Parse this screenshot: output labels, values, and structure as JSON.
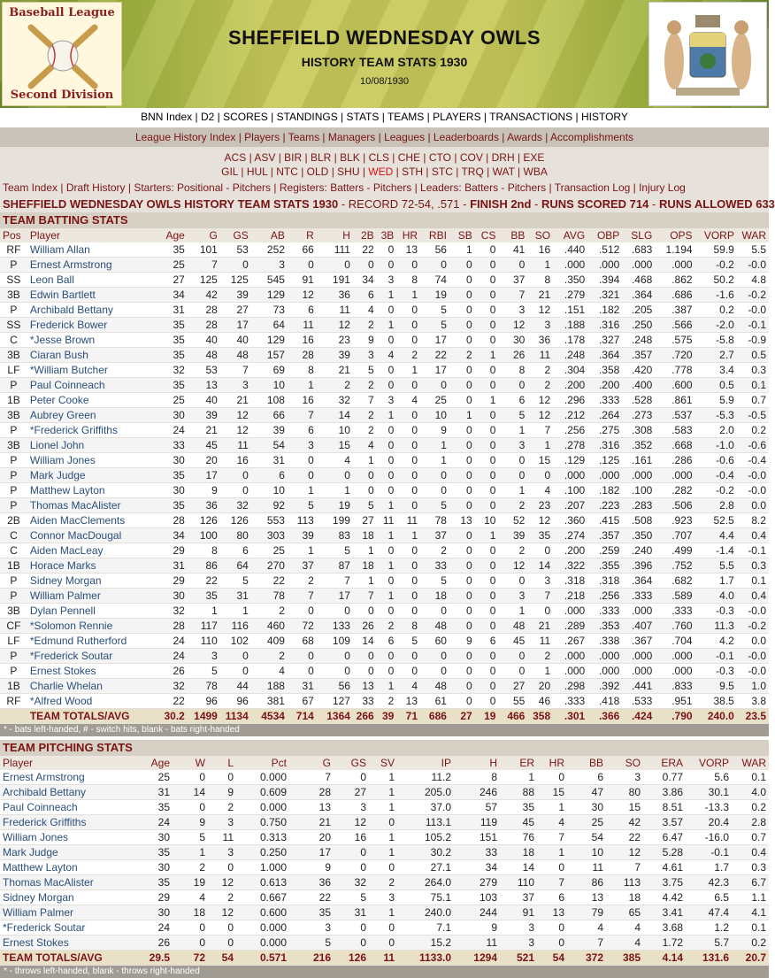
{
  "logo": {
    "line1": "Baseball League",
    "line2": "Second Division"
  },
  "title": "SHEFFIELD WEDNESDAY OWLS",
  "subtitle": "HISTORY TEAM STATS 1930",
  "date": "10/08/1930",
  "top_nav": [
    "BNN Index",
    "D2",
    "SCORES",
    "STANDINGS",
    "STATS",
    "TEAMS",
    "PLAYERS",
    "TRANSACTIONS",
    "HISTORY"
  ],
  "history_nav": [
    "League History Index",
    "Players",
    "Teams",
    "Managers",
    "Leagues",
    "Leaderboards",
    "Awards",
    "Accomplishments"
  ],
  "team_codes_row1": [
    "ACS",
    "ASV",
    "BIR",
    "BLR",
    "BLK",
    "CLS",
    "CHE",
    "CTO",
    "COV",
    "DRH",
    "EXE"
  ],
  "team_codes_row2": [
    "GIL",
    "HUL",
    "NTC",
    "OLD",
    "SHU",
    "WED",
    "STH",
    "STC",
    "TRQ",
    "WAT",
    "WBA"
  ],
  "current_team_code": "WED",
  "team_links": [
    "Team Index",
    "Draft History",
    "Starters: Positional - Pitchers",
    "Registers: Batters - Pitchers",
    "Leaders: Batters - Pitchers",
    "Transaction Log",
    "Injury Log"
  ],
  "summary": {
    "heading": "SHEFFIELD WEDNESDAY OWLS HISTORY TEAM STATS 1930",
    "record": "RECORD 72-54, .571",
    "finish": "FINISH 2nd",
    "rs": "RUNS SCORED 714",
    "ra": "RUNS ALLOWED 633"
  },
  "batting": {
    "title": "TEAM BATTING STATS",
    "columns": [
      "Pos",
      "Player",
      "Age",
      "G",
      "GS",
      "AB",
      "R",
      "H",
      "2B",
      "3B",
      "HR",
      "RBI",
      "SB",
      "CS",
      "BB",
      "SO",
      "AVG",
      "OBP",
      "SLG",
      "OPS",
      "VORP",
      "WAR"
    ],
    "rows": [
      [
        "RF",
        "William Allan",
        "35",
        "101",
        "53",
        "252",
        "66",
        "111",
        "22",
        "0",
        "13",
        "56",
        "1",
        "0",
        "41",
        "16",
        ".440",
        ".512",
        ".683",
        "1.194",
        "59.9",
        "5.5"
      ],
      [
        "P",
        "Ernest Armstrong",
        "25",
        "7",
        "0",
        "3",
        "0",
        "0",
        "0",
        "0",
        "0",
        "0",
        "0",
        "0",
        "0",
        "1",
        ".000",
        ".000",
        ".000",
        ".000",
        "-0.2",
        "-0.0"
      ],
      [
        "SS",
        "Leon Ball",
        "27",
        "125",
        "125",
        "545",
        "91",
        "191",
        "34",
        "3",
        "8",
        "74",
        "0",
        "0",
        "37",
        "8",
        ".350",
        ".394",
        ".468",
        ".862",
        "50.2",
        "4.8"
      ],
      [
        "3B",
        "Edwin Bartlett",
        "34",
        "42",
        "39",
        "129",
        "12",
        "36",
        "6",
        "1",
        "1",
        "19",
        "0",
        "0",
        "7",
        "21",
        ".279",
        ".321",
        ".364",
        ".686",
        "-1.6",
        "-0.2"
      ],
      [
        "P",
        "Archibald Bettany",
        "31",
        "28",
        "27",
        "73",
        "6",
        "11",
        "4",
        "0",
        "0",
        "5",
        "0",
        "0",
        "3",
        "12",
        ".151",
        ".182",
        ".205",
        ".387",
        "0.2",
        "-0.0"
      ],
      [
        "SS",
        "Frederick Bower",
        "35",
        "28",
        "17",
        "64",
        "11",
        "12",
        "2",
        "1",
        "0",
        "5",
        "0",
        "0",
        "12",
        "3",
        ".188",
        ".316",
        ".250",
        ".566",
        "-2.0",
        "-0.1"
      ],
      [
        "C",
        "*Jesse Brown",
        "35",
        "40",
        "40",
        "129",
        "16",
        "23",
        "9",
        "0",
        "0",
        "17",
        "0",
        "0",
        "30",
        "36",
        ".178",
        ".327",
        ".248",
        ".575",
        "-5.8",
        "-0.9"
      ],
      [
        "3B",
        "Ciaran Bush",
        "35",
        "48",
        "48",
        "157",
        "28",
        "39",
        "3",
        "4",
        "2",
        "22",
        "2",
        "1",
        "26",
        "11",
        ".248",
        ".364",
        ".357",
        ".720",
        "2.7",
        "0.5"
      ],
      [
        "LF",
        "*William Butcher",
        "32",
        "53",
        "7",
        "69",
        "8",
        "21",
        "5",
        "0",
        "1",
        "17",
        "0",
        "0",
        "8",
        "2",
        ".304",
        ".358",
        ".420",
        ".778",
        "3.4",
        "0.3"
      ],
      [
        "P",
        "Paul Coinneach",
        "35",
        "13",
        "3",
        "10",
        "1",
        "2",
        "2",
        "0",
        "0",
        "0",
        "0",
        "0",
        "0",
        "2",
        ".200",
        ".200",
        ".400",
        ".600",
        "0.5",
        "0.1"
      ],
      [
        "1B",
        "Peter Cooke",
        "25",
        "40",
        "21",
        "108",
        "16",
        "32",
        "7",
        "3",
        "4",
        "25",
        "0",
        "1",
        "6",
        "12",
        ".296",
        ".333",
        ".528",
        ".861",
        "5.9",
        "0.7"
      ],
      [
        "3B",
        "Aubrey Green",
        "30",
        "39",
        "12",
        "66",
        "7",
        "14",
        "2",
        "1",
        "0",
        "10",
        "1",
        "0",
        "5",
        "12",
        ".212",
        ".264",
        ".273",
        ".537",
        "-5.3",
        "-0.5"
      ],
      [
        "P",
        "*Frederick Griffiths",
        "24",
        "21",
        "12",
        "39",
        "6",
        "10",
        "2",
        "0",
        "0",
        "9",
        "0",
        "0",
        "1",
        "7",
        ".256",
        ".275",
        ".308",
        ".583",
        "2.0",
        "0.2"
      ],
      [
        "3B",
        "Lionel John",
        "33",
        "45",
        "11",
        "54",
        "3",
        "15",
        "4",
        "0",
        "0",
        "1",
        "0",
        "0",
        "3",
        "1",
        ".278",
        ".316",
        ".352",
        ".668",
        "-1.0",
        "-0.6"
      ],
      [
        "P",
        "William Jones",
        "30",
        "20",
        "16",
        "31",
        "0",
        "4",
        "1",
        "0",
        "0",
        "1",
        "0",
        "0",
        "0",
        "15",
        ".129",
        ".125",
        ".161",
        ".286",
        "-0.6",
        "-0.4"
      ],
      [
        "P",
        "Mark Judge",
        "35",
        "17",
        "0",
        "6",
        "0",
        "0",
        "0",
        "0",
        "0",
        "0",
        "0",
        "0",
        "0",
        "0",
        ".000",
        ".000",
        ".000",
        ".000",
        "-0.4",
        "-0.0"
      ],
      [
        "P",
        "Matthew Layton",
        "30",
        "9",
        "0",
        "10",
        "1",
        "1",
        "0",
        "0",
        "0",
        "0",
        "0",
        "0",
        "1",
        "4",
        ".100",
        ".182",
        ".100",
        ".282",
        "-0.2",
        "-0.0"
      ],
      [
        "P",
        "Thomas MacAlister",
        "35",
        "36",
        "32",
        "92",
        "5",
        "19",
        "5",
        "1",
        "0",
        "5",
        "0",
        "0",
        "2",
        "23",
        ".207",
        ".223",
        ".283",
        ".506",
        "2.8",
        "0.0"
      ],
      [
        "2B",
        "Aiden MacClements",
        "28",
        "126",
        "126",
        "553",
        "113",
        "199",
        "27",
        "11",
        "11",
        "78",
        "13",
        "10",
        "52",
        "12",
        ".360",
        ".415",
        ".508",
        ".923",
        "52.5",
        "8.2"
      ],
      [
        "C",
        "Connor MacDougal",
        "34",
        "100",
        "80",
        "303",
        "39",
        "83",
        "18",
        "1",
        "1",
        "37",
        "0",
        "1",
        "39",
        "35",
        ".274",
        ".357",
        ".350",
        ".707",
        "4.4",
        "0.4"
      ],
      [
        "C",
        "Aiden MacLeay",
        "29",
        "8",
        "6",
        "25",
        "1",
        "5",
        "1",
        "0",
        "0",
        "2",
        "0",
        "0",
        "2",
        "0",
        ".200",
        ".259",
        ".240",
        ".499",
        "-1.4",
        "-0.1"
      ],
      [
        "1B",
        "Horace Marks",
        "31",
        "86",
        "64",
        "270",
        "37",
        "87",
        "18",
        "1",
        "0",
        "33",
        "0",
        "0",
        "12",
        "14",
        ".322",
        ".355",
        ".396",
        ".752",
        "5.5",
        "0.3"
      ],
      [
        "P",
        "Sidney Morgan",
        "29",
        "22",
        "5",
        "22",
        "2",
        "7",
        "1",
        "0",
        "0",
        "5",
        "0",
        "0",
        "0",
        "3",
        ".318",
        ".318",
        ".364",
        ".682",
        "1.7",
        "0.1"
      ],
      [
        "P",
        "William Palmer",
        "30",
        "35",
        "31",
        "78",
        "7",
        "17",
        "7",
        "1",
        "0",
        "18",
        "0",
        "0",
        "3",
        "7",
        ".218",
        ".256",
        ".333",
        ".589",
        "4.0",
        "0.4"
      ],
      [
        "3B",
        "Dylan Pennell",
        "32",
        "1",
        "1",
        "2",
        "0",
        "0",
        "0",
        "0",
        "0",
        "0",
        "0",
        "0",
        "1",
        "0",
        ".000",
        ".333",
        ".000",
        ".333",
        "-0.3",
        "-0.0"
      ],
      [
        "CF",
        "*Solomon Rennie",
        "28",
        "117",
        "116",
        "460",
        "72",
        "133",
        "26",
        "2",
        "8",
        "48",
        "0",
        "0",
        "48",
        "21",
        ".289",
        ".353",
        ".407",
        ".760",
        "11.3",
        "-0.2"
      ],
      [
        "LF",
        "*Edmund Rutherford",
        "24",
        "110",
        "102",
        "409",
        "68",
        "109",
        "14",
        "6",
        "5",
        "60",
        "9",
        "6",
        "45",
        "11",
        ".267",
        ".338",
        ".367",
        ".704",
        "4.2",
        "0.0"
      ],
      [
        "P",
        "*Frederick Soutar",
        "24",
        "3",
        "0",
        "2",
        "0",
        "0",
        "0",
        "0",
        "0",
        "0",
        "0",
        "0",
        "0",
        "2",
        ".000",
        ".000",
        ".000",
        ".000",
        "-0.1",
        "-0.0"
      ],
      [
        "P",
        "Ernest Stokes",
        "26",
        "5",
        "0",
        "4",
        "0",
        "0",
        "0",
        "0",
        "0",
        "0",
        "0",
        "0",
        "0",
        "1",
        ".000",
        ".000",
        ".000",
        ".000",
        "-0.3",
        "-0.0"
      ],
      [
        "1B",
        "Charlie Whelan",
        "32",
        "78",
        "44",
        "188",
        "31",
        "56",
        "13",
        "1",
        "4",
        "48",
        "0",
        "0",
        "27",
        "20",
        ".298",
        ".392",
        ".441",
        ".833",
        "9.5",
        "1.0"
      ],
      [
        "RF",
        "*Alfred Wood",
        "22",
        "96",
        "96",
        "381",
        "67",
        "127",
        "33",
        "2",
        "13",
        "61",
        "0",
        "0",
        "55",
        "46",
        ".333",
        ".418",
        ".533",
        ".951",
        "38.5",
        "3.8"
      ]
    ],
    "totals": [
      "",
      "TEAM TOTALS/AVG",
      "30.2",
      "1499",
      "1134",
      "4534",
      "714",
      "1364",
      "266",
      "39",
      "71",
      "686",
      "27",
      "19",
      "466",
      "358",
      ".301",
      ".366",
      ".424",
      ".790",
      "240.0",
      "23.5"
    ],
    "note": "* - bats left-handed, # - switch hits, blank - bats right-handed"
  },
  "pitching": {
    "title": "TEAM PITCHING STATS",
    "columns": [
      "Player",
      "Age",
      "W",
      "L",
      "Pct",
      "G",
      "GS",
      "SV",
      "IP",
      "H",
      "ER",
      "HR",
      "BB",
      "SO",
      "ERA",
      "VORP",
      "WAR"
    ],
    "rows": [
      [
        "Ernest Armstrong",
        "25",
        "0",
        "0",
        "0.000",
        "7",
        "0",
        "1",
        "11.2",
        "8",
        "1",
        "0",
        "6",
        "3",
        "0.77",
        "5.6",
        "0.1"
      ],
      [
        "Archibald Bettany",
        "31",
        "14",
        "9",
        "0.609",
        "28",
        "27",
        "1",
        "205.0",
        "246",
        "88",
        "15",
        "47",
        "80",
        "3.86",
        "30.1",
        "4.0"
      ],
      [
        "Paul Coinneach",
        "35",
        "0",
        "2",
        "0.000",
        "13",
        "3",
        "1",
        "37.0",
        "57",
        "35",
        "1",
        "30",
        "15",
        "8.51",
        "-13.3",
        "0.2"
      ],
      [
        "Frederick Griffiths",
        "24",
        "9",
        "3",
        "0.750",
        "21",
        "12",
        "0",
        "113.1",
        "119",
        "45",
        "4",
        "25",
        "42",
        "3.57",
        "20.4",
        "2.8"
      ],
      [
        "William Jones",
        "30",
        "5",
        "11",
        "0.313",
        "20",
        "16",
        "1",
        "105.2",
        "151",
        "76",
        "7",
        "54",
        "22",
        "6.47",
        "-16.0",
        "0.7"
      ],
      [
        "Mark Judge",
        "35",
        "1",
        "3",
        "0.250",
        "17",
        "0",
        "1",
        "30.2",
        "33",
        "18",
        "1",
        "10",
        "12",
        "5.28",
        "-0.1",
        "0.4"
      ],
      [
        "Matthew Layton",
        "30",
        "2",
        "0",
        "1.000",
        "9",
        "0",
        "0",
        "27.1",
        "34",
        "14",
        "0",
        "11",
        "7",
        "4.61",
        "1.7",
        "0.3"
      ],
      [
        "Thomas MacAlister",
        "35",
        "19",
        "12",
        "0.613",
        "36",
        "32",
        "2",
        "264.0",
        "279",
        "110",
        "7",
        "86",
        "113",
        "3.75",
        "42.3",
        "6.7"
      ],
      [
        "Sidney Morgan",
        "29",
        "4",
        "2",
        "0.667",
        "22",
        "5",
        "3",
        "75.1",
        "103",
        "37",
        "6",
        "13",
        "18",
        "4.42",
        "6.5",
        "1.1"
      ],
      [
        "William Palmer",
        "30",
        "18",
        "12",
        "0.600",
        "35",
        "31",
        "1",
        "240.0",
        "244",
        "91",
        "13",
        "79",
        "65",
        "3.41",
        "47.4",
        "4.1"
      ],
      [
        "*Frederick Soutar",
        "24",
        "0",
        "0",
        "0.000",
        "3",
        "0",
        "0",
        "7.1",
        "9",
        "3",
        "0",
        "4",
        "4",
        "3.68",
        "1.2",
        "0.1"
      ],
      [
        "Ernest Stokes",
        "26",
        "0",
        "0",
        "0.000",
        "5",
        "0",
        "0",
        "15.2",
        "11",
        "3",
        "0",
        "7",
        "4",
        "1.72",
        "5.7",
        "0.2"
      ]
    ],
    "totals": [
      "TEAM TOTALS/AVG",
      "29.5",
      "72",
      "54",
      "0.571",
      "216",
      "126",
      "11",
      "1133.0",
      "1294",
      "521",
      "54",
      "372",
      "385",
      "4.14",
      "131.6",
      "20.7"
    ],
    "note": "* - throws left-handed, blank - throws right-handed"
  }
}
